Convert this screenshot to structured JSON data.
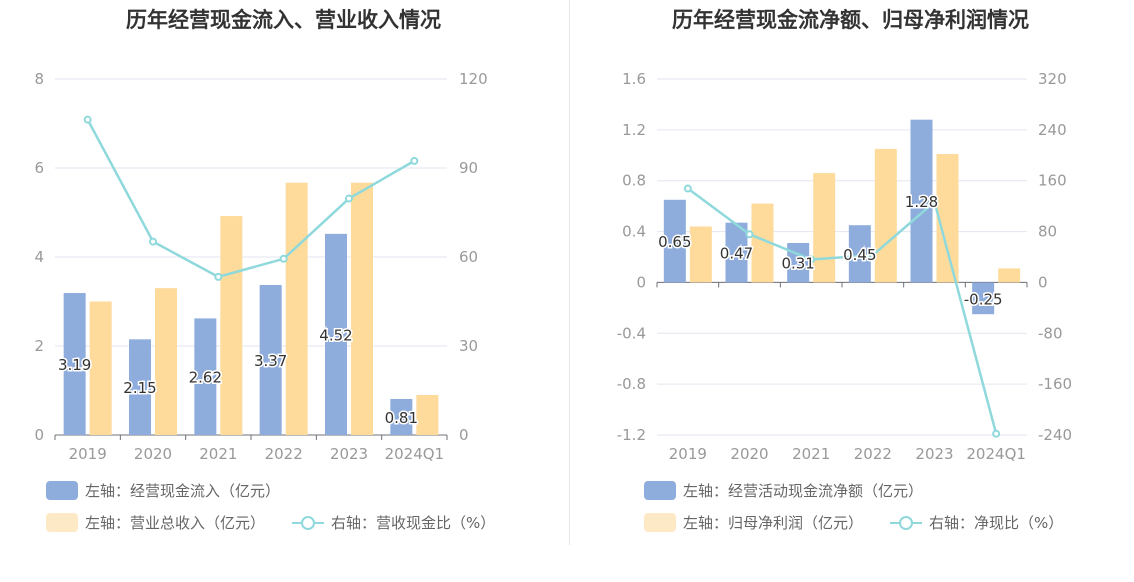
{
  "colors": {
    "blue": "#8eacdc",
    "orange": "#fedb9b",
    "line": "#8fd9dc",
    "legend_orange": "#fde9c5"
  },
  "chart_data": [
    {
      "type": "bar",
      "title": "历年经营现金流入、营业收入情况",
      "categories": [
        "2019",
        "2020",
        "2021",
        "2022",
        "2023",
        "2024Q1"
      ],
      "left_axis": {
        "ticks": [
          "0",
          "2",
          "4",
          "6",
          "8"
        ],
        "ylim": [
          0,
          8
        ]
      },
      "right_axis": {
        "ticks": [
          "0",
          "30",
          "60",
          "90",
          "120"
        ],
        "ylim": [
          0,
          120
        ]
      },
      "series": [
        {
          "name": "左轴：经营现金流入（亿元）",
          "kind": "bar",
          "axis": "left",
          "values": [
            3.19,
            2.15,
            2.62,
            3.37,
            4.52,
            0.81
          ],
          "labels": [
            "3.19",
            "2.15",
            "2.62",
            "3.37",
            "4.52",
            "0.81"
          ]
        },
        {
          "name": "左轴：营业总收入（亿元）",
          "kind": "bar",
          "axis": "left",
          "values": [
            3.0,
            3.3,
            4.92,
            5.67,
            5.67,
            0.9
          ]
        },
        {
          "name": "右轴：营收现金比（%）",
          "kind": "line",
          "axis": "right",
          "values": [
            106.3,
            65.2,
            53.3,
            59.4,
            79.7,
            92.4
          ]
        }
      ]
    },
    {
      "type": "bar",
      "title": "历年经营现金流净额、归母净利润情况",
      "categories": [
        "2019",
        "2020",
        "2021",
        "2022",
        "2023",
        "2024Q1"
      ],
      "left_axis": {
        "ticks": [
          "-1.2",
          "-0.8",
          "-0.4",
          "0",
          "0.4",
          "0.8",
          "1.2",
          "1.6"
        ],
        "ylim": [
          -1.2,
          1.6
        ]
      },
      "right_axis": {
        "ticks": [
          "-240",
          "-160",
          "-80",
          "0",
          "80",
          "160",
          "240",
          "320"
        ],
        "ylim": [
          -240,
          320
        ]
      },
      "series": [
        {
          "name": "左轴：经营活动现金流净额（亿元）",
          "kind": "bar",
          "axis": "left",
          "values": [
            0.65,
            0.47,
            0.31,
            0.45,
            1.28,
            -0.25
          ],
          "labels": [
            "0.65",
            "0.47",
            "0.31",
            "0.45",
            "1.28",
            "-0.25"
          ]
        },
        {
          "name": "左轴：归母净利润（亿元）",
          "kind": "bar",
          "axis": "left",
          "values": [
            0.44,
            0.62,
            0.86,
            1.05,
            1.01,
            0.11
          ]
        },
        {
          "name": "右轴：净现比（%）",
          "kind": "line",
          "axis": "right",
          "values": [
            147.7,
            75.8,
            36.0,
            42.9,
            126.7,
            -238
          ]
        }
      ]
    }
  ]
}
